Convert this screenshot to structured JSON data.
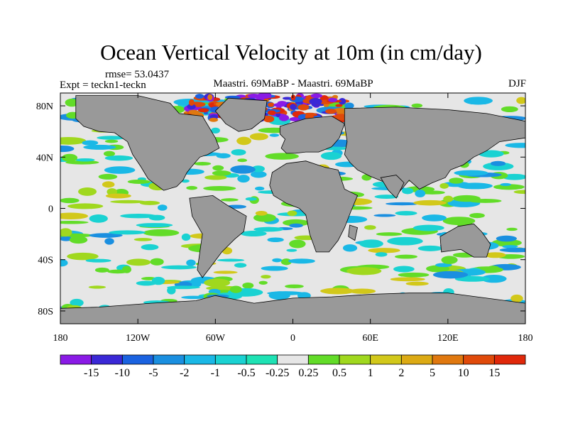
{
  "chart_data": {
    "type": "heatmap",
    "title": "Ocean Vertical Velocity at 10m (in cm/day)",
    "rmse_label": "rmse= 53.0437",
    "expt_label": "Expt = teckn1-teckn",
    "center_label": "Maastri.  69MaBP - Maastri.  69MaBP",
    "season_label": "DJF",
    "x_range": [
      -180,
      180
    ],
    "y_range": [
      -90,
      90
    ],
    "x_ticks": [
      {
        "value": -180,
        "label": "180"
      },
      {
        "value": -120,
        "label": "120W"
      },
      {
        "value": -60,
        "label": "60W"
      },
      {
        "value": 0,
        "label": "0"
      },
      {
        "value": 60,
        "label": "60E"
      },
      {
        "value": 120,
        "label": "120E"
      },
      {
        "value": 180,
        "label": "180"
      }
    ],
    "y_ticks": [
      {
        "value": 80,
        "label": "80N"
      },
      {
        "value": 40,
        "label": "40N"
      },
      {
        "value": 0,
        "label": "0"
      },
      {
        "value": -40,
        "label": "40S"
      },
      {
        "value": -80,
        "label": "80S"
      }
    ],
    "colorbar": {
      "levels": [
        "-15",
        "-10",
        "-5",
        "-2",
        "-1",
        "-0.5",
        "-0.25",
        "0.25",
        "0.5",
        "1",
        "2",
        "5",
        "10",
        "15"
      ],
      "colors": [
        "#8a1ae6",
        "#3a28d6",
        "#1a62e0",
        "#1a8fe0",
        "#1ab8e6",
        "#1ad2d2",
        "#1ee2b4",
        "#e6e6e6",
        "#62dc28",
        "#a0d81e",
        "#d2c81a",
        "#dcaa14",
        "#e0780f",
        "#e04a0a",
        "#e0280a"
      ]
    },
    "land_color": "#999999",
    "land_masses": [
      {
        "name": "north-america",
        "outline": [
          [
            -168,
            88
          ],
          [
            -120,
            88
          ],
          [
            -95,
            82
          ],
          [
            -88,
            74
          ],
          [
            -70,
            72
          ],
          [
            -60,
            55
          ],
          [
            -57,
            47
          ],
          [
            -66,
            42
          ],
          [
            -72,
            40
          ],
          [
            -78,
            33
          ],
          [
            -82,
            28
          ],
          [
            -85,
            22
          ],
          [
            -90,
            17
          ],
          [
            -100,
            14
          ],
          [
            -112,
            23
          ],
          [
            -118,
            33
          ],
          [
            -124,
            42
          ],
          [
            -128,
            52
          ],
          [
            -138,
            59
          ],
          [
            -150,
            60
          ],
          [
            -162,
            64
          ],
          [
            -168,
            70
          ],
          [
            -168,
            88
          ]
        ]
      },
      {
        "name": "greenland",
        "outline": [
          [
            -50,
            86
          ],
          [
            -20,
            84
          ],
          [
            -22,
            70
          ],
          [
            -32,
            62
          ],
          [
            -42,
            60
          ],
          [
            -52,
            66
          ],
          [
            -60,
            76
          ],
          [
            -50,
            86
          ]
        ]
      },
      {
        "name": "europe",
        "outline": [
          [
            -10,
            64
          ],
          [
            10,
            70
          ],
          [
            30,
            72
          ],
          [
            40,
            66
          ],
          [
            36,
            55
          ],
          [
            30,
            48
          ],
          [
            20,
            44
          ],
          [
            10,
            44
          ],
          [
            2,
            43
          ],
          [
            -5,
            43
          ],
          [
            -9,
            47
          ],
          [
            -6,
            54
          ],
          [
            -10,
            58
          ],
          [
            -10,
            64
          ]
        ]
      },
      {
        "name": "asia",
        "outline": [
          [
            40,
            78
          ],
          [
            80,
            79
          ],
          [
            120,
            77
          ],
          [
            150,
            74
          ],
          [
            170,
            70
          ],
          [
            180,
            68
          ],
          [
            180,
            55
          ],
          [
            160,
            52
          ],
          [
            150,
            45
          ],
          [
            140,
            40
          ],
          [
            132,
            34
          ],
          [
            122,
            30
          ],
          [
            118,
            24
          ],
          [
            108,
            20
          ],
          [
            98,
            15
          ],
          [
            90,
            22
          ],
          [
            80,
            10
          ],
          [
            72,
            20
          ],
          [
            60,
            25
          ],
          [
            50,
            30
          ],
          [
            44,
            36
          ],
          [
            40,
            42
          ],
          [
            42,
            52
          ],
          [
            40,
            66
          ],
          [
            40,
            78
          ]
        ]
      },
      {
        "name": "africa",
        "outline": [
          [
            -16,
            28
          ],
          [
            -5,
            35
          ],
          [
            10,
            37
          ],
          [
            25,
            32
          ],
          [
            35,
            30
          ],
          [
            40,
            15
          ],
          [
            50,
            10
          ],
          [
            45,
            -2
          ],
          [
            40,
            -15
          ],
          [
            35,
            -25
          ],
          [
            28,
            -34
          ],
          [
            18,
            -34
          ],
          [
            13,
            -20
          ],
          [
            10,
            -5
          ],
          [
            5,
            0
          ],
          [
            -5,
            4
          ],
          [
            -15,
            10
          ],
          [
            -18,
            18
          ],
          [
            -16,
            28
          ]
        ]
      },
      {
        "name": "south-america",
        "outline": [
          [
            -80,
            8
          ],
          [
            -62,
            10
          ],
          [
            -50,
            2
          ],
          [
            -36,
            -6
          ],
          [
            -38,
            -18
          ],
          [
            -45,
            -24
          ],
          [
            -55,
            -34
          ],
          [
            -64,
            -46
          ],
          [
            -70,
            -54
          ],
          [
            -74,
            -48
          ],
          [
            -72,
            -34
          ],
          [
            -70,
            -20
          ],
          [
            -78,
            -6
          ],
          [
            -80,
            8
          ]
        ]
      },
      {
        "name": "india",
        "outline": [
          [
            68,
            24
          ],
          [
            80,
            26
          ],
          [
            86,
            20
          ],
          [
            80,
            8
          ],
          [
            74,
            14
          ],
          [
            68,
            24
          ]
        ]
      },
      {
        "name": "madagascar",
        "outline": [
          [
            44,
            -13
          ],
          [
            50,
            -15
          ],
          [
            48,
            -25
          ],
          [
            43,
            -22
          ],
          [
            44,
            -13
          ]
        ]
      },
      {
        "name": "australia",
        "outline": [
          [
            114,
            -22
          ],
          [
            128,
            -14
          ],
          [
            140,
            -12
          ],
          [
            146,
            -18
          ],
          [
            153,
            -28
          ],
          [
            150,
            -38
          ],
          [
            140,
            -38
          ],
          [
            130,
            -32
          ],
          [
            115,
            -34
          ],
          [
            114,
            -22
          ]
        ]
      },
      {
        "name": "antarctica",
        "outline": [
          [
            -180,
            -90
          ],
          [
            180,
            -90
          ],
          [
            180,
            -74
          ],
          [
            150,
            -70
          ],
          [
            120,
            -66
          ],
          [
            90,
            -66
          ],
          [
            60,
            -67
          ],
          [
            30,
            -69
          ],
          [
            0,
            -70
          ],
          [
            -30,
            -74
          ],
          [
            -60,
            -68
          ],
          [
            -75,
            -72
          ],
          [
            -110,
            -74
          ],
          [
            -150,
            -77
          ],
          [
            -180,
            -78
          ],
          [
            -180,
            -90
          ]
        ]
      }
    ]
  }
}
